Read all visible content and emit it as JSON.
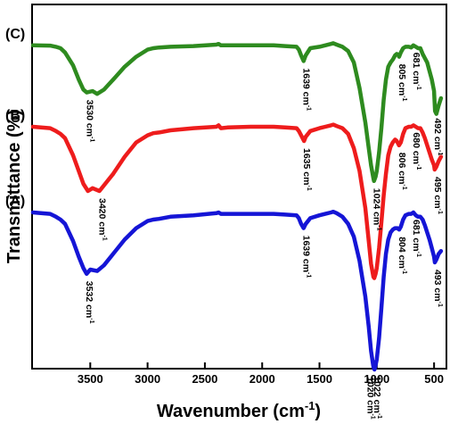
{
  "chart_data": {
    "type": "line",
    "title": "",
    "xlabel": "Wavenumber (cm",
    "xlabel_sup": "-1",
    "xlabel_close": ")",
    "ylabel": "Transmittance  (%)",
    "xlim": [
      4000,
      400
    ],
    "x_reversed": true,
    "x_ticks": [
      3500,
      3000,
      2500,
      2000,
      1500,
      1000,
      500
    ],
    "y_ticks_shown": false,
    "grid": false,
    "legend": "none",
    "series": [
      {
        "name": "(C)",
        "color": "#2e8b1f",
        "x": [
          4000,
          3850,
          3800,
          3760,
          3720,
          3650,
          3600,
          3560,
          3530,
          3480,
          3440,
          3380,
          3300,
          3200,
          3100,
          3000,
          2950,
          2900,
          2800,
          2600,
          2400,
          2380,
          2360,
          2300,
          2100,
          2000,
          1900,
          1800,
          1700,
          1680,
          1660,
          1639,
          1620,
          1580,
          1500,
          1450,
          1400,
          1380,
          1350,
          1300,
          1250,
          1200,
          1150,
          1100,
          1070,
          1050,
          1030,
          1024,
          1010,
          1000,
          980,
          960,
          940,
          920,
          900,
          880,
          860,
          840,
          825,
          810,
          805,
          790,
          770,
          750,
          720,
          700,
          681,
          660,
          640,
          620,
          600,
          580,
          560,
          540,
          520,
          500,
          492,
          480,
          460,
          440
        ],
        "y": [
          2.8,
          2.82,
          2.9,
          3.0,
          3.3,
          4.2,
          5.2,
          5.9,
          6.1,
          6.0,
          6.2,
          5.9,
          5.2,
          4.3,
          3.6,
          3.1,
          3.0,
          2.95,
          2.9,
          2.85,
          2.75,
          2.7,
          2.8,
          2.8,
          2.8,
          2.8,
          2.8,
          2.85,
          2.9,
          3.1,
          3.5,
          3.9,
          3.5,
          3.0,
          2.9,
          2.8,
          2.7,
          2.65,
          2.75,
          2.9,
          3.2,
          4.0,
          5.8,
          8.2,
          10.0,
          11.2,
          12.1,
          12.3,
          12.0,
          11.6,
          10.3,
          8.6,
          6.6,
          5.2,
          4.3,
          4.0,
          3.8,
          3.5,
          3.4,
          3.5,
          3.6,
          3.3,
          3.0,
          2.9,
          2.9,
          2.95,
          2.8,
          2.9,
          3.0,
          3.0,
          3.4,
          3.7,
          4.0,
          4.6,
          5.2,
          6.0,
          7.4,
          7.6,
          7.0,
          6.5
        ]
      },
      {
        "name": "(B)",
        "color": "#ee1c1c",
        "x": [
          4000,
          3850,
          3800,
          3760,
          3720,
          3650,
          3600,
          3560,
          3520,
          3480,
          3420,
          3380,
          3300,
          3200,
          3100,
          3000,
          2950,
          2900,
          2800,
          2600,
          2400,
          2380,
          2360,
          2300,
          2100,
          2000,
          1900,
          1800,
          1700,
          1680,
          1660,
          1635,
          1620,
          1580,
          1500,
          1450,
          1400,
          1380,
          1350,
          1300,
          1250,
          1200,
          1150,
          1100,
          1070,
          1050,
          1030,
          1022,
          1010,
          1000,
          980,
          960,
          940,
          920,
          900,
          880,
          860,
          840,
          825,
          806,
          790,
          770,
          750,
          720,
          700,
          680,
          660,
          640,
          620,
          600,
          580,
          560,
          540,
          520,
          500,
          495,
          480,
          460,
          440
        ],
        "y": [
          8.5,
          8.6,
          8.8,
          9.0,
          9.3,
          10.5,
          11.6,
          12.5,
          13.0,
          12.8,
          13.0,
          12.6,
          11.8,
          10.6,
          9.6,
          9.1,
          8.95,
          8.9,
          8.75,
          8.6,
          8.5,
          8.4,
          8.6,
          8.55,
          8.5,
          8.5,
          8.5,
          8.55,
          8.6,
          8.8,
          9.1,
          9.5,
          9.2,
          8.8,
          8.6,
          8.5,
          8.4,
          8.35,
          8.45,
          8.6,
          9.0,
          10.0,
          11.6,
          14.2,
          16.5,
          18.1,
          19.0,
          19.1,
          18.8,
          18.4,
          17.0,
          15.2,
          13.3,
          11.8,
          10.5,
          9.9,
          9.6,
          9.4,
          9.5,
          9.8,
          9.6,
          9.0,
          8.6,
          8.5,
          8.5,
          8.4,
          8.5,
          8.6,
          8.6,
          8.9,
          9.3,
          9.8,
          10.3,
          10.8,
          11.2,
          11.5,
          11.3,
          10.9,
          10.6
        ]
      },
      {
        "name": "(A)",
        "color": "#1515d6",
        "x": [
          4000,
          3850,
          3800,
          3760,
          3720,
          3650,
          3600,
          3560,
          3532,
          3500,
          3440,
          3380,
          3300,
          3200,
          3100,
          3000,
          2950,
          2900,
          2800,
          2600,
          2400,
          2380,
          2360,
          2300,
          2100,
          2000,
          1900,
          1800,
          1700,
          1680,
          1660,
          1639,
          1620,
          1580,
          1500,
          1450,
          1400,
          1380,
          1350,
          1300,
          1250,
          1200,
          1150,
          1100,
          1070,
          1050,
          1030,
          1020,
          1010,
          1000,
          980,
          960,
          940,
          920,
          900,
          880,
          860,
          840,
          820,
          804,
          790,
          770,
          750,
          720,
          700,
          681,
          660,
          640,
          620,
          600,
          580,
          560,
          540,
          520,
          500,
          493,
          480,
          460,
          440
        ],
        "y": [
          14.5,
          14.6,
          14.8,
          15.0,
          15.3,
          16.5,
          17.6,
          18.4,
          18.8,
          18.5,
          18.6,
          18.2,
          17.4,
          16.4,
          15.6,
          15.1,
          15.0,
          14.95,
          14.8,
          14.7,
          14.55,
          14.5,
          14.6,
          14.6,
          14.6,
          14.6,
          14.6,
          14.65,
          14.7,
          14.9,
          15.3,
          15.6,
          15.3,
          14.9,
          14.7,
          14.6,
          14.5,
          14.45,
          14.55,
          14.8,
          15.3,
          16.2,
          17.9,
          20.4,
          22.5,
          24.2,
          25.3,
          25.5,
          25.2,
          24.8,
          23.3,
          21.2,
          19.0,
          17.4,
          16.4,
          15.9,
          15.7,
          15.6,
          15.6,
          15.7,
          15.5,
          15.0,
          14.7,
          14.6,
          14.6,
          14.5,
          14.7,
          14.8,
          14.8,
          15.0,
          15.4,
          15.9,
          16.4,
          17.0,
          17.6,
          18.0,
          17.8,
          17.4,
          17.2
        ]
      }
    ],
    "annotations": [
      {
        "text": "3530 cm",
        "series": "(C)",
        "x": 3530
      },
      {
        "text": "1639 cm",
        "series": "(C)",
        "x": 1639
      },
      {
        "text": "1024 cm",
        "series": "(C)",
        "x": 1024
      },
      {
        "text": "805 cm",
        "series": "(C)",
        "x": 805
      },
      {
        "text": "681 cm",
        "series": "(C)",
        "x": 681
      },
      {
        "text": "492 cm",
        "series": "(C)",
        "x": 492
      },
      {
        "text": "3420 cm",
        "series": "(B)",
        "x": 3420
      },
      {
        "text": "1635 cm",
        "series": "(B)",
        "x": 1635
      },
      {
        "text": "806 cm",
        "series": "(B)",
        "x": 806
      },
      {
        "text": "680 cm",
        "series": "(B)",
        "x": 680
      },
      {
        "text": "495 cm",
        "series": "(B)",
        "x": 495
      },
      {
        "text": "3532 cm",
        "series": "(A)",
        "x": 3532
      },
      {
        "text": "1639 cm",
        "series": "(A)",
        "x": 1639
      },
      {
        "text": "1022 cm",
        "series": "(A)",
        "x": 1022
      },
      {
        "text": "1020 cm",
        "series": "(A)",
        "x": 1020
      },
      {
        "text": "804 cm",
        "series": "(A)",
        "x": 804
      },
      {
        "text": "681 cm",
        "series": "(A)",
        "x": 681
      },
      {
        "text": "493 cm",
        "series": "(A)",
        "x": 493
      }
    ],
    "annotation_superscript": "-1"
  }
}
